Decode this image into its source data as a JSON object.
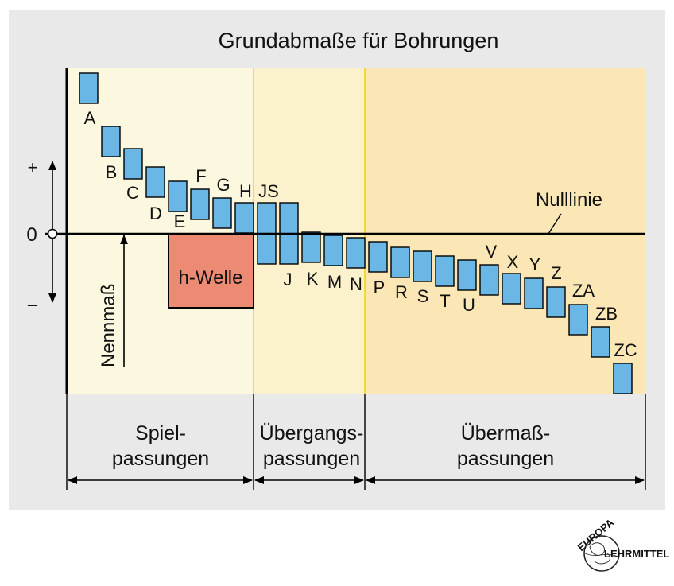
{
  "title": "Grundabmaße für Bohrungen",
  "colors": {
    "panel": "#e9e9e9",
    "zone_spiel": "#fcf7df",
    "zone_uebergang": "#fcf1cd",
    "zone_uebermass": "#fbe7b5",
    "zone_divider": "#f2d200",
    "bar": "#6ab7e6",
    "shaft": "#ec8a74"
  },
  "axis": {
    "plus_label": "+",
    "zero_label": "0",
    "minus_label": "–",
    "nominal_label": "Nennmaß",
    "zero_line_label": "Nulllinie"
  },
  "shaft": {
    "label": "h-Welle"
  },
  "tolerance_zones": [
    {
      "letter": "A",
      "group": "spiel"
    },
    {
      "letter": "B",
      "group": "spiel"
    },
    {
      "letter": "C",
      "group": "spiel"
    },
    {
      "letter": "D",
      "group": "spiel"
    },
    {
      "letter": "E",
      "group": "spiel"
    },
    {
      "letter": "F",
      "group": "spiel"
    },
    {
      "letter": "G",
      "group": "spiel"
    },
    {
      "letter": "H",
      "group": "spiel"
    },
    {
      "letter": "JS",
      "group": "uebergang"
    },
    {
      "letter": "J",
      "group": "uebergang"
    },
    {
      "letter": "K",
      "group": "uebergang"
    },
    {
      "letter": "M",
      "group": "uebergang"
    },
    {
      "letter": "N",
      "group": "uebergang"
    },
    {
      "letter": "P",
      "group": "uebermass"
    },
    {
      "letter": "R",
      "group": "uebermass"
    },
    {
      "letter": "S",
      "group": "uebermass"
    },
    {
      "letter": "T",
      "group": "uebermass"
    },
    {
      "letter": "U",
      "group": "uebermass"
    },
    {
      "letter": "V",
      "group": "uebermass"
    },
    {
      "letter": "X",
      "group": "uebermass"
    },
    {
      "letter": "Y",
      "group": "uebermass"
    },
    {
      "letter": "Z",
      "group": "uebermass"
    },
    {
      "letter": "ZA",
      "group": "uebermass"
    },
    {
      "letter": "ZB",
      "group": "uebermass"
    },
    {
      "letter": "ZC",
      "group": "uebermass"
    }
  ],
  "groups": {
    "spiel": {
      "line1": "Spiel-",
      "line2": "passungen"
    },
    "uebergang": {
      "line1": "Übergangs-",
      "line2": "passungen"
    },
    "uebermass": {
      "line1": "Übermaß-",
      "line2": "passungen"
    }
  },
  "publisher_logo": {
    "top": "EUROPA",
    "bottom": "LEHRMITTEL"
  }
}
